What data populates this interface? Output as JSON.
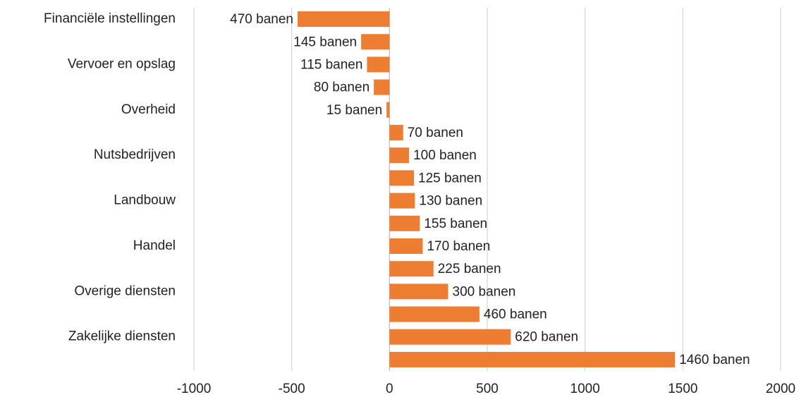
{
  "chart_data": {
    "type": "bar",
    "orientation": "horizontal",
    "categories": [
      "Financiële instellingen",
      null,
      "Vervoer en opslag",
      null,
      "Overheid",
      null,
      "Nutsbedrijven",
      null,
      "Landbouw",
      null,
      "Handel",
      null,
      "Overige diensten",
      null,
      "Zakelijke diensten",
      null
    ],
    "values": [
      -470,
      -145,
      -115,
      -80,
      -15,
      70,
      100,
      125,
      130,
      155,
      170,
      225,
      300,
      460,
      620,
      1460
    ],
    "value_labels": [
      "470 banen",
      "145 banen",
      "115 banen",
      "80 banen",
      "15 banen",
      "70 banen",
      "100 banen",
      "125 banen",
      "130 banen",
      "155 banen",
      "170 banen",
      "225 banen",
      "300 banen",
      "460 banen",
      "620 banen",
      "1460 banen"
    ],
    "color": "#ed7d31",
    "xlim": [
      -1000,
      2000
    ],
    "xticks": [
      -1000,
      -500,
      0,
      500,
      1000,
      1500,
      2000
    ],
    "grid": true
  }
}
